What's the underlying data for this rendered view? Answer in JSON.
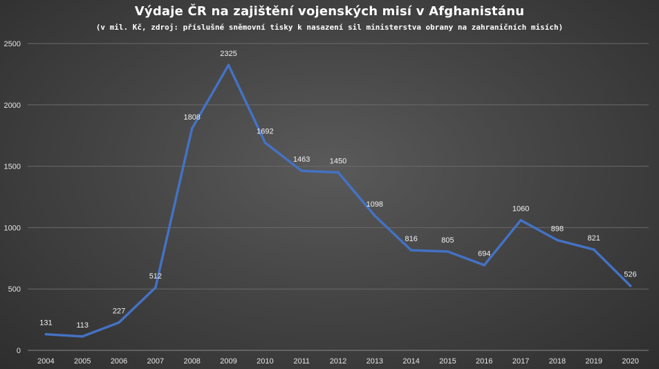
{
  "chart_data": {
    "type": "line",
    "title": "Výdaje ČR na zajištění vojenských misí v Afghanistánu",
    "subtitle": "(v mil. Kč, zdroj: příslušné sněmovní tisky k nasazení sil ministerstva obrany na zahraničních misích)",
    "categories": [
      "2004",
      "2005",
      "2006",
      "2007",
      "2008",
      "2009",
      "2010",
      "2011",
      "2012",
      "2013",
      "2014",
      "2015",
      "2016",
      "2017",
      "2018",
      "2019",
      "2020"
    ],
    "series": [
      {
        "values": [
          131,
          113,
          227,
          512,
          1808,
          2325,
          1692,
          1463,
          1450,
          1098,
          816,
          805,
          694,
          1060,
          898,
          821,
          526
        ]
      }
    ],
    "ylim": [
      0,
      2500
    ],
    "yticks": [
      0,
      500,
      1000,
      1500,
      2000,
      2500
    ],
    "grid": true,
    "line_color": "#4472c4",
    "data_labels": true
  }
}
